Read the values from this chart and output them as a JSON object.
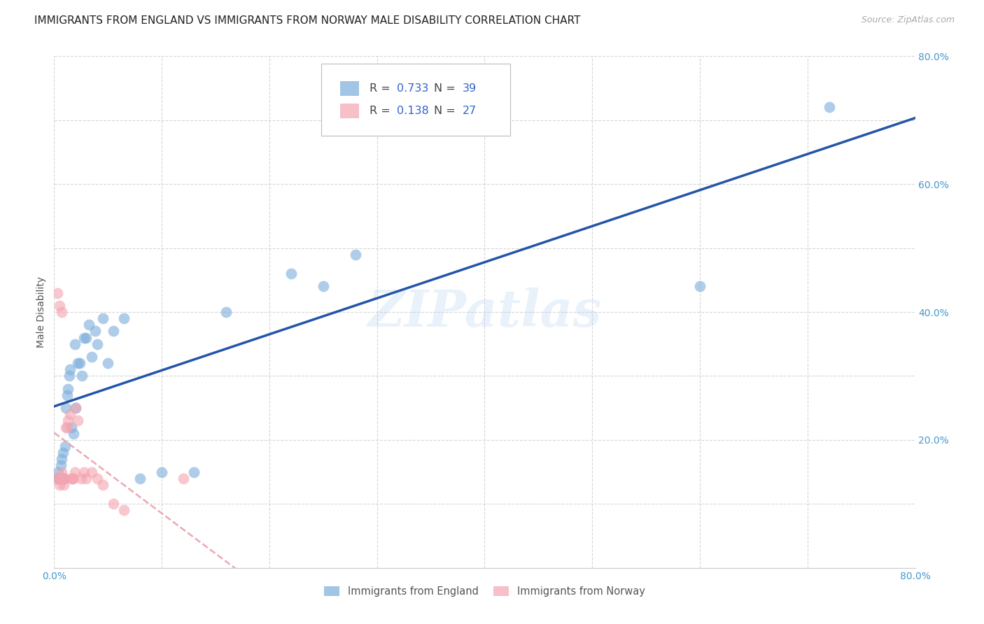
{
  "title": "IMMIGRANTS FROM ENGLAND VS IMMIGRANTS FROM NORWAY MALE DISABILITY CORRELATION CHART",
  "source": "Source: ZipAtlas.com",
  "ylabel": "Male Disability",
  "xlim": [
    0.0,
    0.8
  ],
  "ylim": [
    0.0,
    0.8
  ],
  "xticks": [
    0.0,
    0.1,
    0.2,
    0.3,
    0.4,
    0.5,
    0.6,
    0.7,
    0.8
  ],
  "yticks": [
    0.0,
    0.1,
    0.2,
    0.3,
    0.4,
    0.5,
    0.6,
    0.7,
    0.8
  ],
  "xticklabels": [
    "0.0%",
    "",
    "",
    "",
    "",
    "",
    "",
    "",
    "80.0%"
  ],
  "yticklabels": [
    "",
    "",
    "20.0%",
    "",
    "40.0%",
    "",
    "60.0%",
    "",
    "80.0%"
  ],
  "england_color": "#7aaddb",
  "norway_color": "#f4a4b0",
  "england_R": 0.733,
  "england_N": 39,
  "norway_R": 0.138,
  "norway_N": 27,
  "england_line_color": "#2255aa",
  "norway_line_color": "#e8a0aa",
  "watermark": "ZIPatlas",
  "england_x": [
    0.003,
    0.004,
    0.005,
    0.006,
    0.007,
    0.008,
    0.009,
    0.01,
    0.011,
    0.012,
    0.013,
    0.014,
    0.015,
    0.016,
    0.018,
    0.019,
    0.02,
    0.022,
    0.024,
    0.026,
    0.028,
    0.03,
    0.032,
    0.035,
    0.038,
    0.04,
    0.045,
    0.05,
    0.055,
    0.065,
    0.08,
    0.1,
    0.13,
    0.16,
    0.22,
    0.25,
    0.28,
    0.6,
    0.72
  ],
  "england_y": [
    0.14,
    0.15,
    0.14,
    0.16,
    0.17,
    0.18,
    0.14,
    0.19,
    0.25,
    0.27,
    0.28,
    0.3,
    0.31,
    0.22,
    0.21,
    0.35,
    0.25,
    0.32,
    0.32,
    0.3,
    0.36,
    0.36,
    0.38,
    0.33,
    0.37,
    0.35,
    0.39,
    0.32,
    0.37,
    0.39,
    0.14,
    0.15,
    0.15,
    0.4,
    0.46,
    0.44,
    0.49,
    0.44,
    0.72
  ],
  "norway_x": [
    0.003,
    0.004,
    0.005,
    0.006,
    0.007,
    0.008,
    0.009,
    0.01,
    0.011,
    0.012,
    0.013,
    0.015,
    0.016,
    0.017,
    0.018,
    0.019,
    0.02,
    0.022,
    0.025,
    0.028,
    0.03,
    0.035,
    0.04,
    0.045,
    0.055,
    0.065,
    0.12
  ],
  "norway_y": [
    0.14,
    0.14,
    0.13,
    0.14,
    0.15,
    0.14,
    0.13,
    0.14,
    0.22,
    0.22,
    0.23,
    0.24,
    0.14,
    0.14,
    0.14,
    0.15,
    0.25,
    0.23,
    0.14,
    0.15,
    0.14,
    0.15,
    0.14,
    0.13,
    0.1,
    0.09,
    0.14
  ],
  "title_fontsize": 11,
  "label_fontsize": 10,
  "tick_fontsize": 10,
  "legend_fontsize": 11,
  "norway_highy": [
    0.43,
    0.41,
    0.4
  ]
}
